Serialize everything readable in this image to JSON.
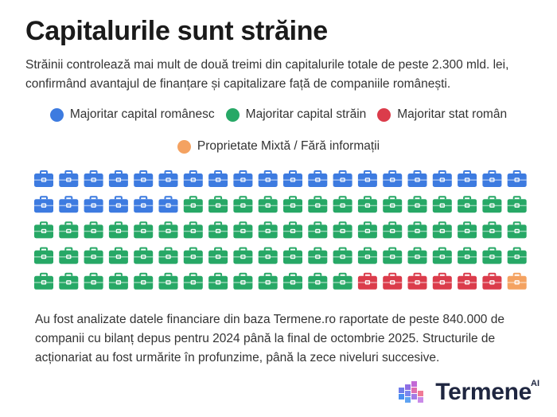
{
  "title": "Capitalurile sunt străine",
  "subtitle": "Străinii controlează mai mult de două treimi din capitalurile totale de peste 2.300 mld. lei, confirmând avantajul de finanțare și capitalizare față de companiile românești.",
  "legend": [
    {
      "label": "Majoritar capital românesc",
      "color": "#3d7be0"
    },
    {
      "label": "Majoritar capital străin",
      "color": "#27a866"
    },
    {
      "label": "Majoritar stat român",
      "color": "#db3c4b"
    },
    {
      "label": "Proprietate Mixtă / Fără informații",
      "color": "#f4a261"
    }
  ],
  "chart_data": {
    "type": "waffle",
    "unit": "icon",
    "icon": "briefcase-icon",
    "grid": {
      "rows": 5,
      "columns": 20
    },
    "categories": [
      "Majoritar capital românesc",
      "Majoritar capital străin",
      "Majoritar stat român",
      "Proprietate Mixtă / Fără informații"
    ],
    "values": [
      26,
      67,
      6,
      1
    ],
    "colors": [
      "#3d7be0",
      "#27a866",
      "#db3c4b",
      "#f4a261"
    ]
  },
  "note": "Au fost analizate datele financiare din baza Termene.ro raportate de peste 840.000 de companii cu bilanț depus pentru 2024 până la final de octombrie 2025. Structurile de acționariat au fost urmărite în profunzime, până la zece niveluri succesive.",
  "brand": {
    "name": "Termene",
    "superscript": "AI"
  }
}
